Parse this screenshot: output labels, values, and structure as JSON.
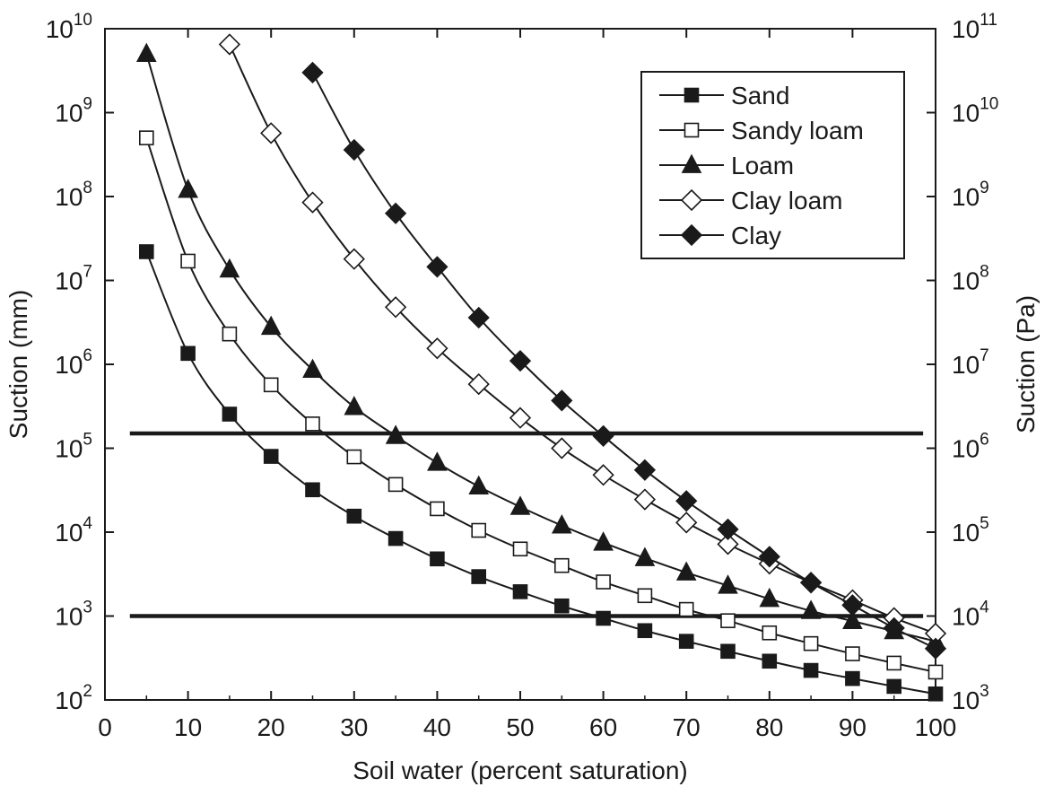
{
  "chart_data": {
    "type": "line",
    "title": "",
    "xlabel": "Soil water (percent saturation)",
    "ylabel": "Suction (mm)",
    "ylabel_right": "Suction (Pa)",
    "xlim": [
      0,
      100
    ],
    "ylim_log10": [
      2,
      10
    ],
    "y_scale": "log",
    "xticks": [
      0,
      10,
      20,
      30,
      40,
      50,
      60,
      70,
      80,
      90,
      100
    ],
    "yticks_left": [
      {
        "base": "10",
        "exp": "2"
      },
      {
        "base": "10",
        "exp": "3"
      },
      {
        "base": "10",
        "exp": "4"
      },
      {
        "base": "10",
        "exp": "5"
      },
      {
        "base": "10",
        "exp": "6"
      },
      {
        "base": "10",
        "exp": "7"
      },
      {
        "base": "10",
        "exp": "8"
      },
      {
        "base": "10",
        "exp": "9"
      },
      {
        "base": "10",
        "exp": "10"
      }
    ],
    "yticks_right": [
      {
        "base": "10",
        "exp": "3"
      },
      {
        "base": "10",
        "exp": "4"
      },
      {
        "base": "10",
        "exp": "5"
      },
      {
        "base": "10",
        "exp": "6"
      },
      {
        "base": "10",
        "exp": "7"
      },
      {
        "base": "10",
        "exp": "8"
      },
      {
        "base": "10",
        "exp": "9"
      },
      {
        "base": "10",
        "exp": "10"
      },
      {
        "base": "10",
        "exp": "11"
      }
    ],
    "grid": false,
    "legend_position": "top-right",
    "reference_lines": [
      {
        "y": 150000,
        "x_from": 3,
        "x_to": 98.5
      },
      {
        "y": 1000,
        "x_from": 3,
        "x_to": 98.5
      }
    ],
    "series": [
      {
        "name": "Sand",
        "marker": "square",
        "filled": true,
        "x": [
          5,
          10,
          15,
          20,
          25,
          30,
          35,
          40,
          45,
          50,
          55,
          60,
          65,
          70,
          75,
          80,
          85,
          90,
          95,
          100
        ],
        "y": [
          22000000,
          1350000,
          255000,
          80000,
          32000,
          15500,
          8400,
          4800,
          2950,
          1950,
          1320,
          940,
          670,
          500,
          380,
          290,
          225,
          180,
          145,
          118
        ]
      },
      {
        "name": "Sandy loam",
        "marker": "square",
        "filled": false,
        "x": [
          5,
          10,
          15,
          20,
          25,
          30,
          35,
          40,
          45,
          50,
          55,
          60,
          65,
          70,
          75,
          80,
          85,
          90,
          95,
          100
        ],
        "y": [
          500000000,
          17000000,
          2300000,
          570000,
          195000,
          79000,
          37000,
          19000,
          10500,
          6300,
          4000,
          2550,
          1750,
          1200,
          880,
          630,
          470,
          355,
          275,
          215
        ]
      },
      {
        "name": "Loam",
        "marker": "triangle",
        "filled": true,
        "x": [
          5,
          10,
          15,
          20,
          25,
          30,
          35,
          40,
          45,
          50,
          55,
          60,
          65,
          70,
          75,
          80,
          85,
          90,
          95,
          100
        ],
        "y": [
          5000000000,
          120000000,
          13500000,
          2800000,
          860000,
          310000,
          140000,
          67000,
          35000,
          20000,
          12000,
          7500,
          4900,
          3300,
          2300,
          1600,
          1150,
          870,
          660,
          500
        ]
      },
      {
        "name": "Clay loam",
        "marker": "diamond",
        "filled": false,
        "x": [
          15,
          20,
          25,
          30,
          35,
          40,
          45,
          50,
          55,
          60,
          65,
          70,
          75,
          80,
          85,
          90,
          95,
          100
        ],
        "y": [
          6500000000,
          570000000,
          85000000,
          18000000,
          4800000,
          1550000,
          580000,
          230000,
          100000,
          48000,
          24500,
          13000,
          7200,
          4200,
          2500,
          1550,
          950,
          620
        ]
      },
      {
        "name": "Clay",
        "marker": "diamond",
        "filled": true,
        "x": [
          25,
          30,
          35,
          40,
          45,
          50,
          55,
          60,
          65,
          70,
          75,
          80,
          85,
          90,
          95,
          100
        ],
        "y": [
          3000000000,
          360000000,
          63000000,
          14500000,
          3600000,
          1100000,
          370000,
          140000,
          55000,
          23500,
          10800,
          5100,
          2500,
          1350,
          720,
          410
        ]
      }
    ]
  }
}
